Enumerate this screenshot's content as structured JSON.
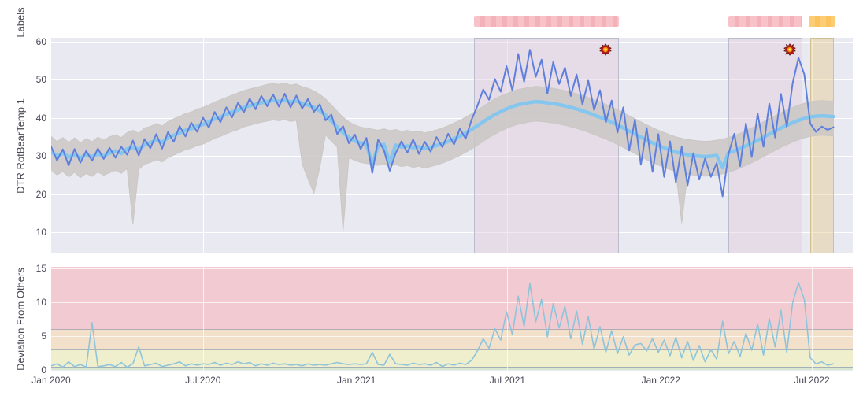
{
  "labels_axis": {
    "title": "Labels"
  },
  "top_chart": {
    "y_title": "DTR RotBearTemp 1",
    "y_ticks": [
      60,
      50,
      40,
      30,
      20,
      10
    ],
    "ylim": [
      4.6,
      61.0
    ]
  },
  "bottom_chart": {
    "y_title": "Deviation From Others",
    "y_ticks": [
      15,
      10,
      5,
      0
    ],
    "ylim": [
      0,
      15.2
    ]
  },
  "x_ticks": [
    {
      "label": "Jan 2020",
      "day": 0
    },
    {
      "label": "Jul 2020",
      "day": 182
    },
    {
      "label": "Jan 2021",
      "day": 366
    },
    {
      "label": "Jul 2021",
      "day": 547
    },
    {
      "label": "Jan 2022",
      "day": 731
    },
    {
      "label": "Jul 2022",
      "day": 912
    }
  ],
  "colors": {
    "plot_bg": "#e9e9f1",
    "main_line": "#5f7fdd",
    "peer_line": "#85c6ef",
    "others_band": "#cbc7c4",
    "deviation_line": "#8ec4da",
    "label_warn": "#f6bdc2",
    "label_alarm": "#fcca6e",
    "band_red": "#f2cbd2",
    "band_orange": "#f2e0cb",
    "band_yellow": "#efefcd",
    "band_green": "#d8e8cf"
  },
  "chart_data": [
    {
      "type": "line",
      "title": "",
      "xlabel": "",
      "ylabel": "DTR RotBearTemp 1",
      "x_start_day": 0,
      "x_step_days": 7,
      "x_axis_days": [
        0,
        182,
        366,
        547,
        731,
        912
      ],
      "x_axis_labels": [
        "Jan 2020",
        "Jul 2020",
        "Jan 2021",
        "Jul 2021",
        "Jan 2022",
        "Jul 2022"
      ],
      "ylim": [
        4.6,
        61.0
      ],
      "grid": true,
      "regions": [
        {
          "kind": "warn",
          "day_from": 507,
          "day_to": 681
        },
        {
          "kind": "warn",
          "day_from": 812,
          "day_to": 901
        },
        {
          "kind": "alarm",
          "day_from": 910,
          "day_to": 938
        }
      ],
      "markers": [
        {
          "kind": "explosion",
          "day": 665,
          "value": 57.9
        },
        {
          "kind": "explosion",
          "day": 886,
          "value": 57.9
        }
      ],
      "series": [
        {
          "name": "others_hi",
          "values": [
            35.2,
            33.8,
            34.9,
            33.6,
            34.8,
            33.5,
            34.6,
            33.8,
            35.0,
            34.2,
            35.1,
            35.6,
            34.9,
            36.2,
            36.8,
            36.0,
            37.4,
            37.8,
            38.6,
            37.9,
            39.1,
            39.8,
            40.4,
            41.2,
            41.6,
            42.3,
            42.8,
            43.4,
            44.2,
            44.8,
            45.4,
            46.0,
            46.6,
            47.2,
            47.6,
            48.0,
            48.4,
            48.8,
            49.0,
            48.8,
            49.2,
            48.6,
            48.9,
            48.2,
            47.8,
            47.1,
            46.2,
            45.0,
            43.4,
            41.8,
            40.2,
            39.0,
            38.2,
            37.6,
            37.4,
            37.1,
            36.8,
            37.2,
            36.7,
            37.0,
            36.5,
            36.8,
            36.3,
            36.6,
            36.1,
            36.5,
            36.9,
            37.4,
            38.0,
            38.7,
            39.4,
            40.2,
            41.1,
            42.1,
            43.1,
            44.1,
            45.0,
            45.8,
            46.4,
            47.0,
            47.5,
            47.8,
            48.1,
            48.3,
            48.2,
            48.0,
            47.8,
            47.5,
            47.2,
            46.8,
            46.4,
            45.9,
            45.4,
            44.8,
            44.2,
            43.6,
            42.9,
            42.2,
            41.4,
            40.6,
            39.8,
            39.0,
            38.2,
            37.5,
            36.8,
            36.2,
            35.6,
            35.1,
            34.7,
            34.4,
            34.2,
            34.0,
            33.9,
            34.0,
            34.2,
            34.5,
            34.9,
            35.4,
            36.0,
            36.7,
            37.4,
            38.2,
            39.0,
            39.8,
            40.6,
            41.4,
            42.1,
            42.8,
            43.4,
            43.9,
            44.3,
            44.5,
            44.6,
            44.5,
            44.4
          ]
        },
        {
          "name": "others_lo",
          "values": [
            26.4,
            25.1,
            26.0,
            24.6,
            25.8,
            24.4,
            25.5,
            24.7,
            25.9,
            25.0,
            25.7,
            26.3,
            25.5,
            26.8,
            12.2,
            26.6,
            27.9,
            28.4,
            29.1,
            28.5,
            29.7,
            30.3,
            31.0,
            31.7,
            32.1,
            32.8,
            33.2,
            33.9,
            34.7,
            35.2,
            35.9,
            36.5,
            37.0,
            37.7,
            38.1,
            38.5,
            38.9,
            39.2,
            39.5,
            39.3,
            39.6,
            39.1,
            39.4,
            28.0,
            24.0,
            20.3,
            27.0,
            35.6,
            34.0,
            32.4,
            10.4,
            29.7,
            28.9,
            28.4,
            28.1,
            27.9,
            27.6,
            28.0,
            27.5,
            27.8,
            27.3,
            27.6,
            27.1,
            27.4,
            26.9,
            27.3,
            27.7,
            28.2,
            28.8,
            29.5,
            30.2,
            31.0,
            31.9,
            32.9,
            33.9,
            34.9,
            35.8,
            36.6,
            37.3,
            37.9,
            38.4,
            38.7,
            39.0,
            39.2,
            39.1,
            38.9,
            38.7,
            38.4,
            38.1,
            37.7,
            37.3,
            36.8,
            36.3,
            35.7,
            35.1,
            34.5,
            33.8,
            33.1,
            32.3,
            31.5,
            30.7,
            29.9,
            29.1,
            28.4,
            27.7,
            27.1,
            26.5,
            26.0,
            12.5,
            25.3,
            25.1,
            24.9,
            24.8,
            24.9,
            25.1,
            25.4,
            25.8,
            26.3,
            26.9,
            27.6,
            28.3,
            29.1,
            29.9,
            30.7,
            31.5,
            32.3,
            33.0,
            33.7,
            34.3,
            34.8,
            35.2,
            35.4,
            35.5,
            35.4,
            35.3
          ]
        },
        {
          "name": "peer_average",
          "values": [
            31.0,
            30.2,
            30.8,
            29.8,
            30.5,
            29.6,
            30.3,
            29.9,
            30.6,
            30.1,
            30.8,
            31.4,
            30.7,
            31.9,
            32.4,
            31.8,
            33.0,
            33.6,
            34.2,
            33.7,
            34.8,
            35.5,
            36.1,
            36.8,
            37.2,
            37.9,
            38.3,
            39.0,
            39.8,
            40.3,
            41.0,
            41.6,
            42.1,
            42.8,
            43.2,
            43.6,
            44.0,
            44.3,
            44.6,
            44.4,
            44.7,
            44.2,
            44.5,
            43.9,
            43.4,
            42.8,
            41.9,
            40.8,
            39.2,
            37.6,
            36.1,
            34.9,
            34.0,
            33.5,
            33.2,
            27.8,
            32.7,
            33.1,
            28.4,
            32.9,
            32.4,
            32.7,
            32.2,
            32.5,
            32.0,
            32.4,
            32.8,
            33.3,
            33.9,
            34.6,
            35.3,
            36.1,
            37.0,
            38.0,
            39.0,
            40.0,
            40.9,
            41.7,
            42.4,
            43.0,
            43.5,
            43.8,
            44.1,
            44.3,
            44.2,
            44.0,
            43.8,
            43.5,
            43.2,
            42.8,
            42.4,
            41.9,
            41.4,
            40.8,
            40.2,
            39.6,
            38.9,
            38.2,
            37.4,
            36.6,
            35.8,
            35.0,
            34.2,
            33.5,
            32.8,
            32.2,
            31.6,
            31.1,
            30.7,
            30.4,
            30.2,
            30.0,
            29.9,
            30.0,
            30.2,
            27.0,
            30.9,
            31.4,
            32.0,
            32.7,
            33.4,
            34.2,
            35.0,
            35.8,
            36.6,
            37.4,
            38.1,
            38.8,
            39.4,
            39.9,
            40.3,
            40.5,
            40.6,
            40.5,
            40.4
          ]
        },
        {
          "name": "monitored_sensor",
          "values": [
            32.5,
            28.9,
            31.8,
            27.6,
            31.9,
            28.3,
            31.4,
            28.8,
            32.0,
            29.3,
            32.2,
            29.6,
            32.5,
            30.4,
            34.1,
            30.2,
            34.5,
            32.1,
            35.8,
            32.0,
            36.3,
            33.8,
            37.9,
            35.2,
            38.8,
            36.4,
            40.1,
            37.5,
            41.6,
            38.9,
            42.8,
            40.2,
            44.0,
            41.5,
            45.1,
            42.3,
            45.8,
            43.1,
            46.2,
            43.0,
            46.4,
            42.8,
            45.9,
            42.5,
            45.0,
            41.6,
            43.6,
            39.4,
            40.9,
            35.8,
            37.9,
            33.4,
            35.7,
            31.9,
            34.8,
            25.6,
            34.3,
            31.6,
            26.2,
            30.8,
            33.9,
            30.9,
            34.4,
            30.6,
            33.8,
            31.2,
            35.0,
            32.4,
            35.9,
            33.1,
            37.2,
            34.6,
            39.5,
            43.2,
            47.5,
            44.8,
            50.2,
            46.9,
            53.6,
            47.2,
            56.8,
            49.5,
            57.9,
            50.8,
            55.3,
            46.4,
            54.7,
            48.9,
            53.2,
            45.8,
            51.4,
            43.6,
            49.8,
            42.1,
            47.3,
            38.9,
            44.6,
            36.2,
            42.8,
            31.5,
            39.6,
            27.8,
            37.4,
            25.9,
            35.8,
            24.6,
            33.9,
            23.2,
            32.5,
            22.4,
            30.8,
            23.9,
            29.4,
            24.6,
            28.2,
            19.5,
            30.5,
            35.9,
            27.4,
            38.6,
            29.8,
            41.2,
            32.5,
            43.8,
            34.9,
            46.3,
            37.8,
            49.1,
            55.8,
            51.4,
            38.6,
            36.4,
            37.8,
            36.9,
            37.6
          ]
        }
      ],
      "label_bars": [
        {
          "kind": "warn",
          "day_from": 507,
          "day_to": 681
        },
        {
          "kind": "warn",
          "day_from": 812,
          "day_to": 901
        },
        {
          "kind": "alarm",
          "day_from": 908,
          "day_to": 940
        }
      ]
    },
    {
      "type": "line",
      "title": "",
      "xlabel": "",
      "ylabel": "Deviation From Others",
      "x_start_day": 0,
      "x_step_days": 7,
      "ylim": [
        0,
        15.2
      ],
      "grid": true,
      "bands": [
        {
          "name": "critical",
          "from": 6.0,
          "to": 15.2,
          "color": "#f2cbd2"
        },
        {
          "name": "high",
          "from": 3.0,
          "to": 6.0,
          "color": "#f2e0cb"
        },
        {
          "name": "elevated",
          "from": 0.5,
          "to": 3.0,
          "color": "#efefcd"
        },
        {
          "name": "normal",
          "from": 0.0,
          "to": 0.5,
          "color": "#d8e8cf"
        }
      ],
      "series": [
        {
          "name": "deviation",
          "values": [
            0.6,
            0.9,
            0.4,
            1.2,
            0.5,
            0.8,
            0.4,
            7.0,
            0.5,
            0.6,
            0.8,
            0.5,
            1.1,
            0.4,
            0.9,
            3.4,
            0.6,
            0.8,
            1.0,
            0.5,
            0.7,
            0.9,
            1.2,
            0.6,
            0.9,
            0.7,
            0.9,
            0.8,
            1.1,
            0.7,
            1.0,
            0.8,
            1.2,
            0.9,
            1.1,
            0.6,
            0.9,
            0.7,
            1.0,
            0.8,
            0.9,
            0.7,
            0.8,
            0.6,
            0.9,
            0.7,
            0.8,
            0.7,
            0.9,
            1.1,
            0.9,
            0.8,
            0.9,
            0.8,
            0.9,
            2.6,
            0.8,
            0.7,
            2.3,
            0.9,
            0.8,
            0.7,
            1.0,
            0.8,
            0.9,
            0.7,
            1.1,
            0.5,
            0.9,
            0.7,
            1.0,
            0.8,
            1.4,
            2.8,
            4.6,
            3.2,
            6.1,
            4.4,
            8.6,
            5.2,
            10.9,
            6.4,
            12.8,
            7.1,
            10.4,
            4.9,
            9.8,
            6.2,
            9.4,
            4.6,
            8.7,
            3.8,
            7.9,
            3.1,
            6.4,
            2.6,
            5.8,
            2.4,
            4.9,
            2.2,
            3.7,
            3.9,
            2.8,
            4.6,
            2.6,
            4.4,
            2.1,
            4.8,
            1.8,
            4.2,
            1.4,
            3.6,
            1.2,
            3.0,
            1.6,
            7.2,
            2.4,
            4.2,
            2.0,
            5.4,
            2.9,
            6.8,
            2.2,
            7.6,
            3.4,
            8.8,
            2.6,
            9.9,
            12.9,
            10.4,
            1.8,
            0.9,
            1.2,
            0.7,
            0.9
          ]
        }
      ]
    }
  ]
}
